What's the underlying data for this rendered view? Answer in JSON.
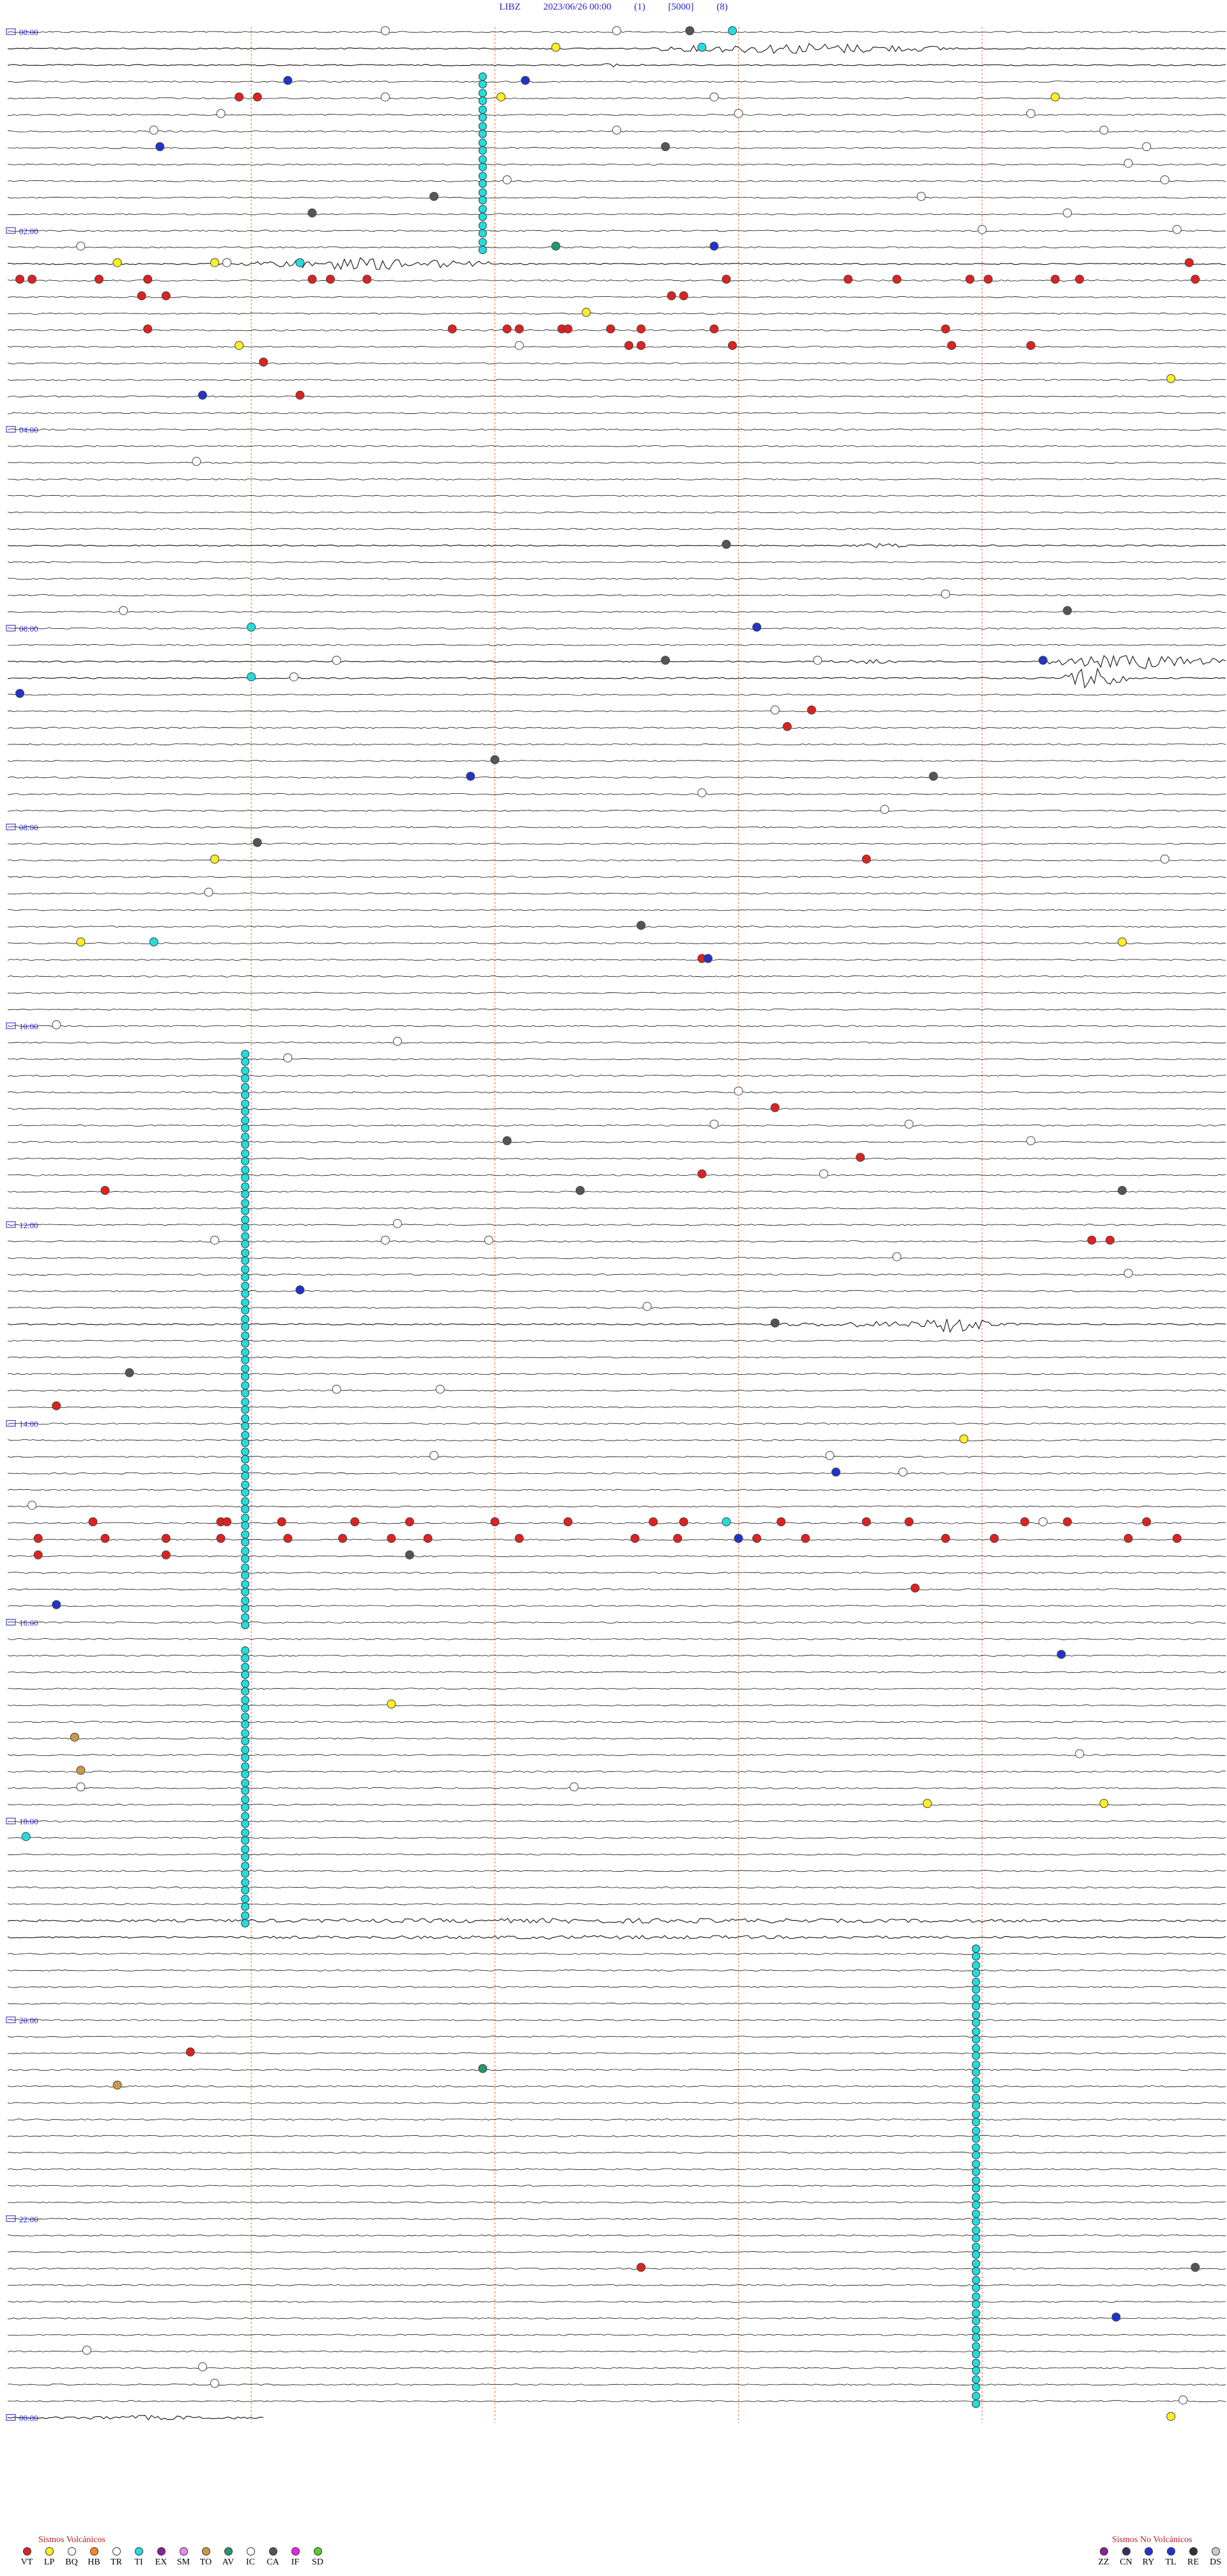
{
  "header": {
    "station": "LIBZ",
    "datetime": "2023/06/26 00:00",
    "gain": "(1)",
    "scale": "[5000]",
    "mode": "(8)"
  },
  "legend": {
    "volcanic_title": "Sismos Volcánicos",
    "non_volcanic_title": "Sismos No Volcánicos",
    "volcanic": [
      {
        "code": "VT",
        "color": "#dd2222"
      },
      {
        "code": "LP",
        "color": "#ffee22"
      },
      {
        "code": "BQ",
        "color": "#ffffff"
      },
      {
        "code": "HB",
        "color": "#ff8822"
      },
      {
        "code": "TR",
        "color": "#ffffff"
      },
      {
        "code": "TI",
        "color": "#22dddd"
      },
      {
        "code": "EX",
        "color": "#882299"
      },
      {
        "code": "SM",
        "color": "#ee88ee"
      },
      {
        "code": "TO",
        "color": "#cc9944"
      },
      {
        "code": "AV",
        "color": "#229966"
      },
      {
        "code": "IC",
        "color": "#ffffff"
      },
      {
        "code": "CA",
        "color": "#555555"
      },
      {
        "code": "IF",
        "color": "#ee22ee"
      },
      {
        "code": "SD",
        "color": "#55cc33"
      }
    ],
    "non_volcanic": [
      {
        "code": "ZZ",
        "color": "#882299"
      },
      {
        "code": "CN",
        "color": "#333366"
      },
      {
        "code": "RY",
        "color": "#2233cc"
      },
      {
        "code": "TL",
        "color": "#2233cc"
      },
      {
        "code": "RE",
        "color": "#333333"
      },
      {
        "code": "DS",
        "color": "#cccccc"
      }
    ]
  },
  "chart_data": {
    "type": "seismogram",
    "rows_total": 145,
    "minutes_per_row": 10,
    "hour_labels": [
      {
        "row": 0,
        "label": "00:00"
      },
      {
        "row": 12,
        "label": "02:00"
      },
      {
        "row": 24,
        "label": "04:00"
      },
      {
        "row": 36,
        "label": "06:00"
      },
      {
        "row": 48,
        "label": "08:00"
      },
      {
        "row": 60,
        "label": "10:00"
      },
      {
        "row": 72,
        "label": "12:00"
      },
      {
        "row": 84,
        "label": "14:00"
      },
      {
        "row": 96,
        "label": "16:00"
      },
      {
        "row": 108,
        "label": "18:00"
      },
      {
        "row": 120,
        "label": "20:00"
      },
      {
        "row": 132,
        "label": "22:00"
      },
      {
        "row": 144,
        "label": "00:00"
      }
    ],
    "minute_marks": [
      2,
      4,
      6,
      8
    ],
    "bursts": [
      {
        "row": 1,
        "x0": 0.53,
        "x1": 0.78,
        "amp": 9
      },
      {
        "row": 2,
        "x0": 0.47,
        "x1": 0.53,
        "amp": 3
      },
      {
        "row": 14,
        "x0": 0.19,
        "x1": 0.4,
        "amp": 10
      },
      {
        "row": 31,
        "x0": 0.69,
        "x1": 0.74,
        "amp": 4
      },
      {
        "row": 38,
        "x0": 0.67,
        "x1": 0.74,
        "amp": 4
      },
      {
        "row": 38,
        "x0": 0.85,
        "x1": 1.0,
        "amp": 12
      },
      {
        "row": 39,
        "x0": 0.86,
        "x1": 0.92,
        "amp": 20
      },
      {
        "row": 78,
        "x0": 0.62,
        "x1": 0.83,
        "amp": 5
      },
      {
        "row": 78,
        "x0": 0.75,
        "x1": 0.81,
        "amp": 16
      },
      {
        "row": 114,
        "x0": 0.0,
        "x1": 1.0,
        "amp": 4
      },
      {
        "row": 115,
        "x0": 0.0,
        "x1": 1.0,
        "amp": 3
      },
      {
        "row": 144,
        "x0": 0.03,
        "x1": 0.2,
        "amp": 4
      },
      {
        "row": 144,
        "x0": 0.97,
        "x1": 1.0,
        "amp": 5
      }
    ],
    "ti_columns": [
      {
        "x": 0.39,
        "row_start": 3,
        "row_end": 13
      },
      {
        "x": 0.195,
        "row_start": 62,
        "row_end": 96
      },
      {
        "x": 0.195,
        "row_start": 98,
        "row_end": 114
      },
      {
        "x": 0.795,
        "row_start": 116,
        "row_end": 143
      }
    ],
    "events": [
      {
        "row": 0,
        "x": 0.31,
        "t": "BQ"
      },
      {
        "row": 0,
        "x": 0.5,
        "t": "BQ"
      },
      {
        "row": 0,
        "x": 0.56,
        "t": "CA"
      },
      {
        "row": 0,
        "x": 0.595,
        "t": "TI"
      },
      {
        "row": 1,
        "x": 0.45,
        "t": "LP"
      },
      {
        "row": 1,
        "x": 0.57,
        "t": "TI"
      },
      {
        "row": 3,
        "x": 0.23,
        "t": "RY"
      },
      {
        "row": 3,
        "x": 0.425,
        "t": "RY"
      },
      {
        "row": 4,
        "x": 0.19,
        "t": "VT"
      },
      {
        "row": 4,
        "x": 0.205,
        "t": "VT"
      },
      {
        "row": 4,
        "x": 0.31,
        "t": "BQ"
      },
      {
        "row": 4,
        "x": 0.405,
        "t": "LP"
      },
      {
        "row": 4,
        "x": 0.58,
        "t": "BQ"
      },
      {
        "row": 4,
        "x": 0.86,
        "t": "LP"
      },
      {
        "row": 5,
        "x": 0.175,
        "t": "BQ"
      },
      {
        "row": 5,
        "x": 0.6,
        "t": "BQ"
      },
      {
        "row": 5,
        "x": 0.84,
        "t": "BQ"
      },
      {
        "row": 6,
        "x": 0.12,
        "t": "BQ"
      },
      {
        "row": 6,
        "x": 0.5,
        "t": "BQ"
      },
      {
        "row": 6,
        "x": 0.9,
        "t": "BQ"
      },
      {
        "row": 7,
        "x": 0.125,
        "t": "RY"
      },
      {
        "row": 7,
        "x": 0.54,
        "t": "CA"
      },
      {
        "row": 7,
        "x": 0.935,
        "t": "BQ"
      },
      {
        "row": 8,
        "x": 0.92,
        "t": "BQ"
      },
      {
        "row": 9,
        "x": 0.41,
        "t": "BQ"
      },
      {
        "row": 9,
        "x": 0.95,
        "t": "BQ"
      },
      {
        "row": 10,
        "x": 0.35,
        "t": "CA"
      },
      {
        "row": 10,
        "x": 0.75,
        "t": "BQ"
      },
      {
        "row": 11,
        "x": 0.25,
        "t": "CA"
      },
      {
        "row": 11,
        "x": 0.87,
        "t": "BQ"
      },
      {
        "row": 12,
        "x": 0.8,
        "t": "BQ"
      },
      {
        "row": 12,
        "x": 0.96,
        "t": "BQ"
      },
      {
        "row": 13,
        "x": 0.06,
        "t": "BQ"
      },
      {
        "row": 13,
        "x": 0.45,
        "t": "AV"
      },
      {
        "row": 13,
        "x": 0.58,
        "t": "RY"
      },
      {
        "row": 14,
        "x": 0.09,
        "t": "LP"
      },
      {
        "row": 14,
        "x": 0.17,
        "t": "LP"
      },
      {
        "row": 14,
        "x": 0.18,
        "t": "BQ"
      },
      {
        "row": 14,
        "x": 0.24,
        "t": "TI"
      },
      {
        "row": 14,
        "x": 0.97,
        "t": "VT"
      },
      {
        "row": 15,
        "x": 0.01,
        "t": "VT"
      },
      {
        "row": 15,
        "x": 0.02,
        "t": "VT"
      },
      {
        "row": 15,
        "x": 0.075,
        "t": "VT"
      },
      {
        "row": 15,
        "x": 0.115,
        "t": "VT"
      },
      {
        "row": 15,
        "x": 0.25,
        "t": "VT"
      },
      {
        "row": 15,
        "x": 0.265,
        "t": "VT"
      },
      {
        "row": 15,
        "x": 0.295,
        "t": "VT"
      },
      {
        "row": 15,
        "x": 0.59,
        "t": "VT"
      },
      {
        "row": 15,
        "x": 0.69,
        "t": "VT"
      },
      {
        "row": 15,
        "x": 0.73,
        "t": "VT"
      },
      {
        "row": 15,
        "x": 0.79,
        "t": "VT"
      },
      {
        "row": 15,
        "x": 0.805,
        "t": "VT"
      },
      {
        "row": 15,
        "x": 0.86,
        "t": "VT"
      },
      {
        "row": 15,
        "x": 0.88,
        "t": "VT"
      },
      {
        "row": 15,
        "x": 0.975,
        "t": "VT"
      },
      {
        "row": 16,
        "x": 0.11,
        "t": "VT"
      },
      {
        "row": 16,
        "x": 0.13,
        "t": "VT"
      },
      {
        "row": 16,
        "x": 0.545,
        "t": "VT"
      },
      {
        "row": 16,
        "x": 0.555,
        "t": "VT"
      },
      {
        "row": 17,
        "x": 0.475,
        "t": "LP"
      },
      {
        "row": 18,
        "x": 0.115,
        "t": "VT"
      },
      {
        "row": 18,
        "x": 0.365,
        "t": "VT"
      },
      {
        "row": 18,
        "x": 0.41,
        "t": "VT"
      },
      {
        "row": 18,
        "x": 0.42,
        "t": "VT"
      },
      {
        "row": 18,
        "x": 0.455,
        "t": "VT"
      },
      {
        "row": 18,
        "x": 0.46,
        "t": "VT"
      },
      {
        "row": 18,
        "x": 0.495,
        "t": "VT"
      },
      {
        "row": 18,
        "x": 0.52,
        "t": "VT"
      },
      {
        "row": 18,
        "x": 0.58,
        "t": "VT"
      },
      {
        "row": 18,
        "x": 0.77,
        "t": "VT"
      },
      {
        "row": 19,
        "x": 0.42,
        "t": "BQ"
      },
      {
        "row": 19,
        "x": 0.19,
        "t": "LP"
      },
      {
        "row": 19,
        "x": 0.51,
        "t": "VT"
      },
      {
        "row": 19,
        "x": 0.52,
        "t": "VT"
      },
      {
        "row": 19,
        "x": 0.595,
        "t": "VT"
      },
      {
        "row": 19,
        "x": 0.775,
        "t": "VT"
      },
      {
        "row": 19,
        "x": 0.84,
        "t": "VT"
      },
      {
        "row": 20,
        "x": 0.21,
        "t": "VT"
      },
      {
        "row": 21,
        "x": 0.955,
        "t": "LP"
      },
      {
        "row": 22,
        "x": 0.16,
        "t": "RY"
      },
      {
        "row": 22,
        "x": 0.24,
        "t": "VT"
      },
      {
        "row": 26,
        "x": 0.155,
        "t": "BQ"
      },
      {
        "row": 31,
        "x": 0.59,
        "t": "CA"
      },
      {
        "row": 34,
        "x": 0.77,
        "t": "BQ"
      },
      {
        "row": 35,
        "x": 0.095,
        "t": "BQ"
      },
      {
        "row": 35,
        "x": 0.87,
        "t": "CA"
      },
      {
        "row": 36,
        "x": 0.2,
        "t": "TI"
      },
      {
        "row": 36,
        "x": 0.615,
        "t": "RY"
      },
      {
        "row": 38,
        "x": 0.27,
        "t": "BQ"
      },
      {
        "row": 38,
        "x": 0.54,
        "t": "CA"
      },
      {
        "row": 38,
        "x": 0.665,
        "t": "BQ"
      },
      {
        "row": 38,
        "x": 0.85,
        "t": "RY"
      },
      {
        "row": 39,
        "x": 0.235,
        "t": "BQ"
      },
      {
        "row": 39,
        "x": 0.2,
        "t": "TI"
      },
      {
        "row": 40,
        "x": 0.01,
        "t": "RY"
      },
      {
        "row": 41,
        "x": 0.66,
        "t": "VT"
      },
      {
        "row": 41,
        "x": 0.63,
        "t": "BQ"
      },
      {
        "row": 42,
        "x": 0.64,
        "t": "VT"
      },
      {
        "row": 44,
        "x": 0.4,
        "t": "CA"
      },
      {
        "row": 45,
        "x": 0.38,
        "t": "RY"
      },
      {
        "row": 45,
        "x": 0.76,
        "t": "CA"
      },
      {
        "row": 47,
        "x": 0.72,
        "t": "BQ"
      },
      {
        "row": 46,
        "x": 0.57,
        "t": "BQ"
      },
      {
        "row": 49,
        "x": 0.205,
        "t": "CA"
      },
      {
        "row": 50,
        "x": 0.17,
        "t": "LP"
      },
      {
        "row": 50,
        "x": 0.705,
        "t": "VT"
      },
      {
        "row": 50,
        "x": 0.95,
        "t": "BQ"
      },
      {
        "row": 52,
        "x": 0.165,
        "t": "BQ"
      },
      {
        "row": 54,
        "x": 0.52,
        "t": "CA"
      },
      {
        "row": 55,
        "x": 0.06,
        "t": "LP"
      },
      {
        "row": 55,
        "x": 0.12,
        "t": "TI"
      },
      {
        "row": 55,
        "x": 0.915,
        "t": "LP"
      },
      {
        "row": 56,
        "x": 0.57,
        "t": "VT"
      },
      {
        "row": 56,
        "x": 0.575,
        "t": "RY"
      },
      {
        "row": 60,
        "x": 0.04,
        "t": "BQ"
      },
      {
        "row": 61,
        "x": 0.32,
        "t": "BQ"
      },
      {
        "row": 62,
        "x": 0.23,
        "t": "BQ"
      },
      {
        "row": 64,
        "x": 0.6,
        "t": "BQ"
      },
      {
        "row": 65,
        "x": 0.63,
        "t": "VT"
      },
      {
        "row": 66,
        "x": 0.58,
        "t": "BQ"
      },
      {
        "row": 66,
        "x": 0.74,
        "t": "BQ"
      },
      {
        "row": 67,
        "x": 0.41,
        "t": "CA"
      },
      {
        "row": 67,
        "x": 0.84,
        "t": "BQ"
      },
      {
        "row": 68,
        "x": 0.7,
        "t": "VT"
      },
      {
        "row": 69,
        "x": 0.57,
        "t": "VT"
      },
      {
        "row": 70,
        "x": 0.08,
        "t": "VT"
      },
      {
        "row": 70,
        "x": 0.47,
        "t": "CA"
      },
      {
        "row": 70,
        "x": 0.915,
        "t": "CA"
      },
      {
        "row": 69,
        "x": 0.67,
        "t": "BQ"
      },
      {
        "row": 72,
        "x": 0.32,
        "t": "BQ"
      },
      {
        "row": 73,
        "x": 0.89,
        "t": "VT"
      },
      {
        "row": 73,
        "x": 0.905,
        "t": "VT"
      },
      {
        "row": 73,
        "x": 0.17,
        "t": "BQ"
      },
      {
        "row": 73,
        "x": 0.31,
        "t": "BQ"
      },
      {
        "row": 73,
        "x": 0.395,
        "t": "BQ"
      },
      {
        "row": 74,
        "x": 0.73,
        "t": "BQ"
      },
      {
        "row": 75,
        "x": 0.92,
        "t": "BQ"
      },
      {
        "row": 76,
        "x": 0.24,
        "t": "RY"
      },
      {
        "row": 77,
        "x": 0.525,
        "t": "BQ"
      },
      {
        "row": 78,
        "x": 0.63,
        "t": "CA"
      },
      {
        "row": 81,
        "x": 0.1,
        "t": "CA"
      },
      {
        "row": 82,
        "x": 0.27,
        "t": "BQ"
      },
      {
        "row": 82,
        "x": 0.355,
        "t": "BQ"
      },
      {
        "row": 83,
        "x": 0.04,
        "t": "VT"
      },
      {
        "row": 85,
        "x": 0.785,
        "t": "LP"
      },
      {
        "row": 86,
        "x": 0.35,
        "t": "BQ"
      },
      {
        "row": 86,
        "x": 0.675,
        "t": "BQ"
      },
      {
        "row": 87,
        "x": 0.68,
        "t": "RY"
      },
      {
        "row": 87,
        "x": 0.735,
        "t": "BQ"
      },
      {
        "row": 89,
        "x": 0.02,
        "t": "BQ"
      },
      {
        "row": 90,
        "x": 0.07,
        "t": "VT"
      },
      {
        "row": 90,
        "x": 0.175,
        "t": "VT"
      },
      {
        "row": 90,
        "x": 0.18,
        "t": "VT"
      },
      {
        "row": 90,
        "x": 0.225,
        "t": "VT"
      },
      {
        "row": 90,
        "x": 0.285,
        "t": "VT"
      },
      {
        "row": 90,
        "x": 0.33,
        "t": "VT"
      },
      {
        "row": 90,
        "x": 0.4,
        "t": "VT"
      },
      {
        "row": 90,
        "x": 0.46,
        "t": "VT"
      },
      {
        "row": 90,
        "x": 0.53,
        "t": "VT"
      },
      {
        "row": 90,
        "x": 0.555,
        "t": "VT"
      },
      {
        "row": 90,
        "x": 0.635,
        "t": "VT"
      },
      {
        "row": 90,
        "x": 0.705,
        "t": "VT"
      },
      {
        "row": 90,
        "x": 0.74,
        "t": "VT"
      },
      {
        "row": 90,
        "x": 0.835,
        "t": "VT"
      },
      {
        "row": 90,
        "x": 0.935,
        "t": "VT"
      },
      {
        "row": 90,
        "x": 0.59,
        "t": "TI"
      },
      {
        "row": 90,
        "x": 0.85,
        "t": "BQ"
      },
      {
        "row": 90,
        "x": 0.87,
        "t": "VT"
      },
      {
        "row": 91,
        "x": 0.025,
        "t": "VT"
      },
      {
        "row": 91,
        "x": 0.08,
        "t": "VT"
      },
      {
        "row": 91,
        "x": 0.13,
        "t": "VT"
      },
      {
        "row": 91,
        "x": 0.175,
        "t": "VT"
      },
      {
        "row": 91,
        "x": 0.23,
        "t": "VT"
      },
      {
        "row": 91,
        "x": 0.275,
        "t": "VT"
      },
      {
        "row": 91,
        "x": 0.315,
        "t": "VT"
      },
      {
        "row": 91,
        "x": 0.345,
        "t": "VT"
      },
      {
        "row": 91,
        "x": 0.42,
        "t": "VT"
      },
      {
        "row": 91,
        "x": 0.515,
        "t": "VT"
      },
      {
        "row": 91,
        "x": 0.55,
        "t": "VT"
      },
      {
        "row": 91,
        "x": 0.6,
        "t": "VT"
      },
      {
        "row": 91,
        "x": 0.615,
        "t": "VT"
      },
      {
        "row": 91,
        "x": 0.655,
        "t": "VT"
      },
      {
        "row": 91,
        "x": 0.77,
        "t": "VT"
      },
      {
        "row": 91,
        "x": 0.81,
        "t": "VT"
      },
      {
        "row": 91,
        "x": 0.92,
        "t": "VT"
      },
      {
        "row": 91,
        "x": 0.96,
        "t": "VT"
      },
      {
        "row": 91,
        "x": 0.6,
        "t": "RY"
      },
      {
        "row": 92,
        "x": 0.025,
        "t": "VT"
      },
      {
        "row": 92,
        "x": 0.13,
        "t": "VT"
      },
      {
        "row": 92,
        "x": 0.33,
        "t": "CA"
      },
      {
        "row": 94,
        "x": 0.745,
        "t": "VT"
      },
      {
        "row": 95,
        "x": 0.04,
        "t": "RY"
      },
      {
        "row": 98,
        "x": 0.865,
        "t": "RY"
      },
      {
        "row": 101,
        "x": 0.315,
        "t": "LP"
      },
      {
        "row": 103,
        "x": 0.055,
        "t": "TO"
      },
      {
        "row": 104,
        "x": 0.88,
        "t": "BQ"
      },
      {
        "row": 105,
        "x": 0.06,
        "t": "TO"
      },
      {
        "row": 106,
        "x": 0.465,
        "t": "BQ"
      },
      {
        "row": 106,
        "x": 0.06,
        "t": "BQ"
      },
      {
        "row": 107,
        "x": 0.755,
        "t": "LP"
      },
      {
        "row": 107,
        "x": 0.9,
        "t": "LP"
      },
      {
        "row": 109,
        "x": 0.015,
        "t": "TI"
      },
      {
        "row": 122,
        "x": 0.15,
        "t": "VT"
      },
      {
        "row": 123,
        "x": 0.39,
        "t": "AV"
      },
      {
        "row": 124,
        "x": 0.09,
        "t": "TO"
      },
      {
        "row": 135,
        "x": 0.52,
        "t": "VT"
      },
      {
        "row": 135,
        "x": 0.975,
        "t": "CA"
      },
      {
        "row": 138,
        "x": 0.91,
        "t": "RY"
      },
      {
        "row": 140,
        "x": 0.065,
        "t": "BQ"
      },
      {
        "row": 141,
        "x": 0.16,
        "t": "BQ"
      },
      {
        "row": 142,
        "x": 0.17,
        "t": "BQ"
      },
      {
        "row": 143,
        "x": 0.965,
        "t": "BQ"
      },
      {
        "row": 144,
        "x": 0.955,
        "t": "LP"
      }
    ]
  }
}
